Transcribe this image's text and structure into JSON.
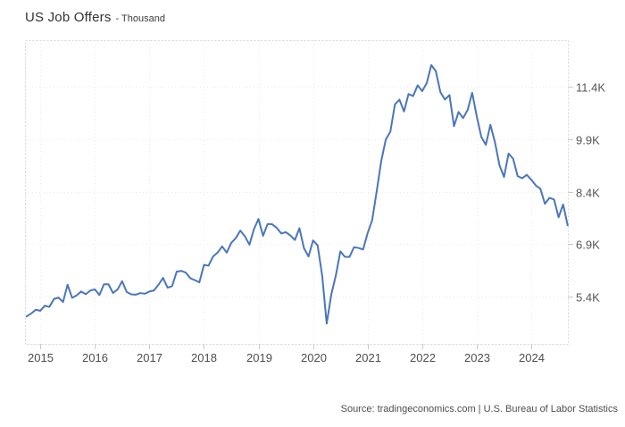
{
  "header": {
    "title": "US Job Offers",
    "unit_label": "- Thousand"
  },
  "footer": {
    "source": "Source: tradingeconomics.com | U.S. Bureau of Labor Statistics"
  },
  "colors": {
    "line": "#4a76ba",
    "grid": "#e9e9e9",
    "plot_border": "#d6d6d6",
    "tick": "#c9c9c9",
    "title_text": "#333333",
    "axis_text": "#4d4d4d",
    "source_text": "#4d4d4d"
  },
  "chart_data": {
    "type": "line",
    "title": "US Job Offers",
    "ylabel": "Thousand",
    "frequency": "monthly",
    "start": "2014-10",
    "end": "2024-09",
    "grid": true,
    "legend": false,
    "x_axis": {
      "ticks": [
        "2015",
        "2016",
        "2017",
        "2018",
        "2019",
        "2020",
        "2021",
        "2022",
        "2023",
        "2024"
      ],
      "min_year": 2014.72,
      "max_year": 2024.67
    },
    "y_axis": {
      "ticks": [
        {
          "label": "5.4K",
          "value": 5400
        },
        {
          "label": "6.9K",
          "value": 6900
        },
        {
          "label": "8.4K",
          "value": 8400
        },
        {
          "label": "9.9K",
          "value": 9900
        },
        {
          "label": "11.4K",
          "value": 11400
        }
      ],
      "min": 4050,
      "max": 12740
    },
    "values": [
      4837,
      4920,
      5028,
      4998,
      5144,
      5109,
      5334,
      5376,
      5249,
      5743,
      5370,
      5439,
      5550,
      5472,
      5577,
      5611,
      5450,
      5757,
      5756,
      5507,
      5607,
      5845,
      5539,
      5469,
      5458,
      5505,
      5486,
      5548,
      5580,
      5743,
      5940,
      5660,
      5702,
      6116,
      6140,
      6090,
      5930,
      5874,
      5812,
      6312,
      6288,
      6551,
      6662,
      6840,
      6662,
      6939,
      7077,
      7293,
      7131,
      6888,
      7335,
      7625,
      7142,
      7480,
      7474,
      7372,
      7209,
      7248,
      7154,
      7024,
      7361,
      6787,
      6552,
      7012,
      6870,
      6011,
      4631,
      5461,
      6001,
      6697,
      6542,
      6538,
      6817,
      6796,
      6752,
      7220,
      7591,
      8420,
      9286,
      9900,
      10123,
      10900,
      11039,
      10700,
      11200,
      11141,
      11448,
      11283,
      11512,
      12027,
      11855,
      11254,
      11040,
      11170,
      10280,
      10687,
      10512,
      10746,
      11234,
      10563,
      9974,
      9745,
      10320,
      9824,
      9165,
      8827,
      9497,
      9350,
      8852,
      8790,
      8889,
      8748,
      8583,
      8488,
      8059,
      8230,
      8184,
      7673,
      8040,
      7443
    ]
  }
}
